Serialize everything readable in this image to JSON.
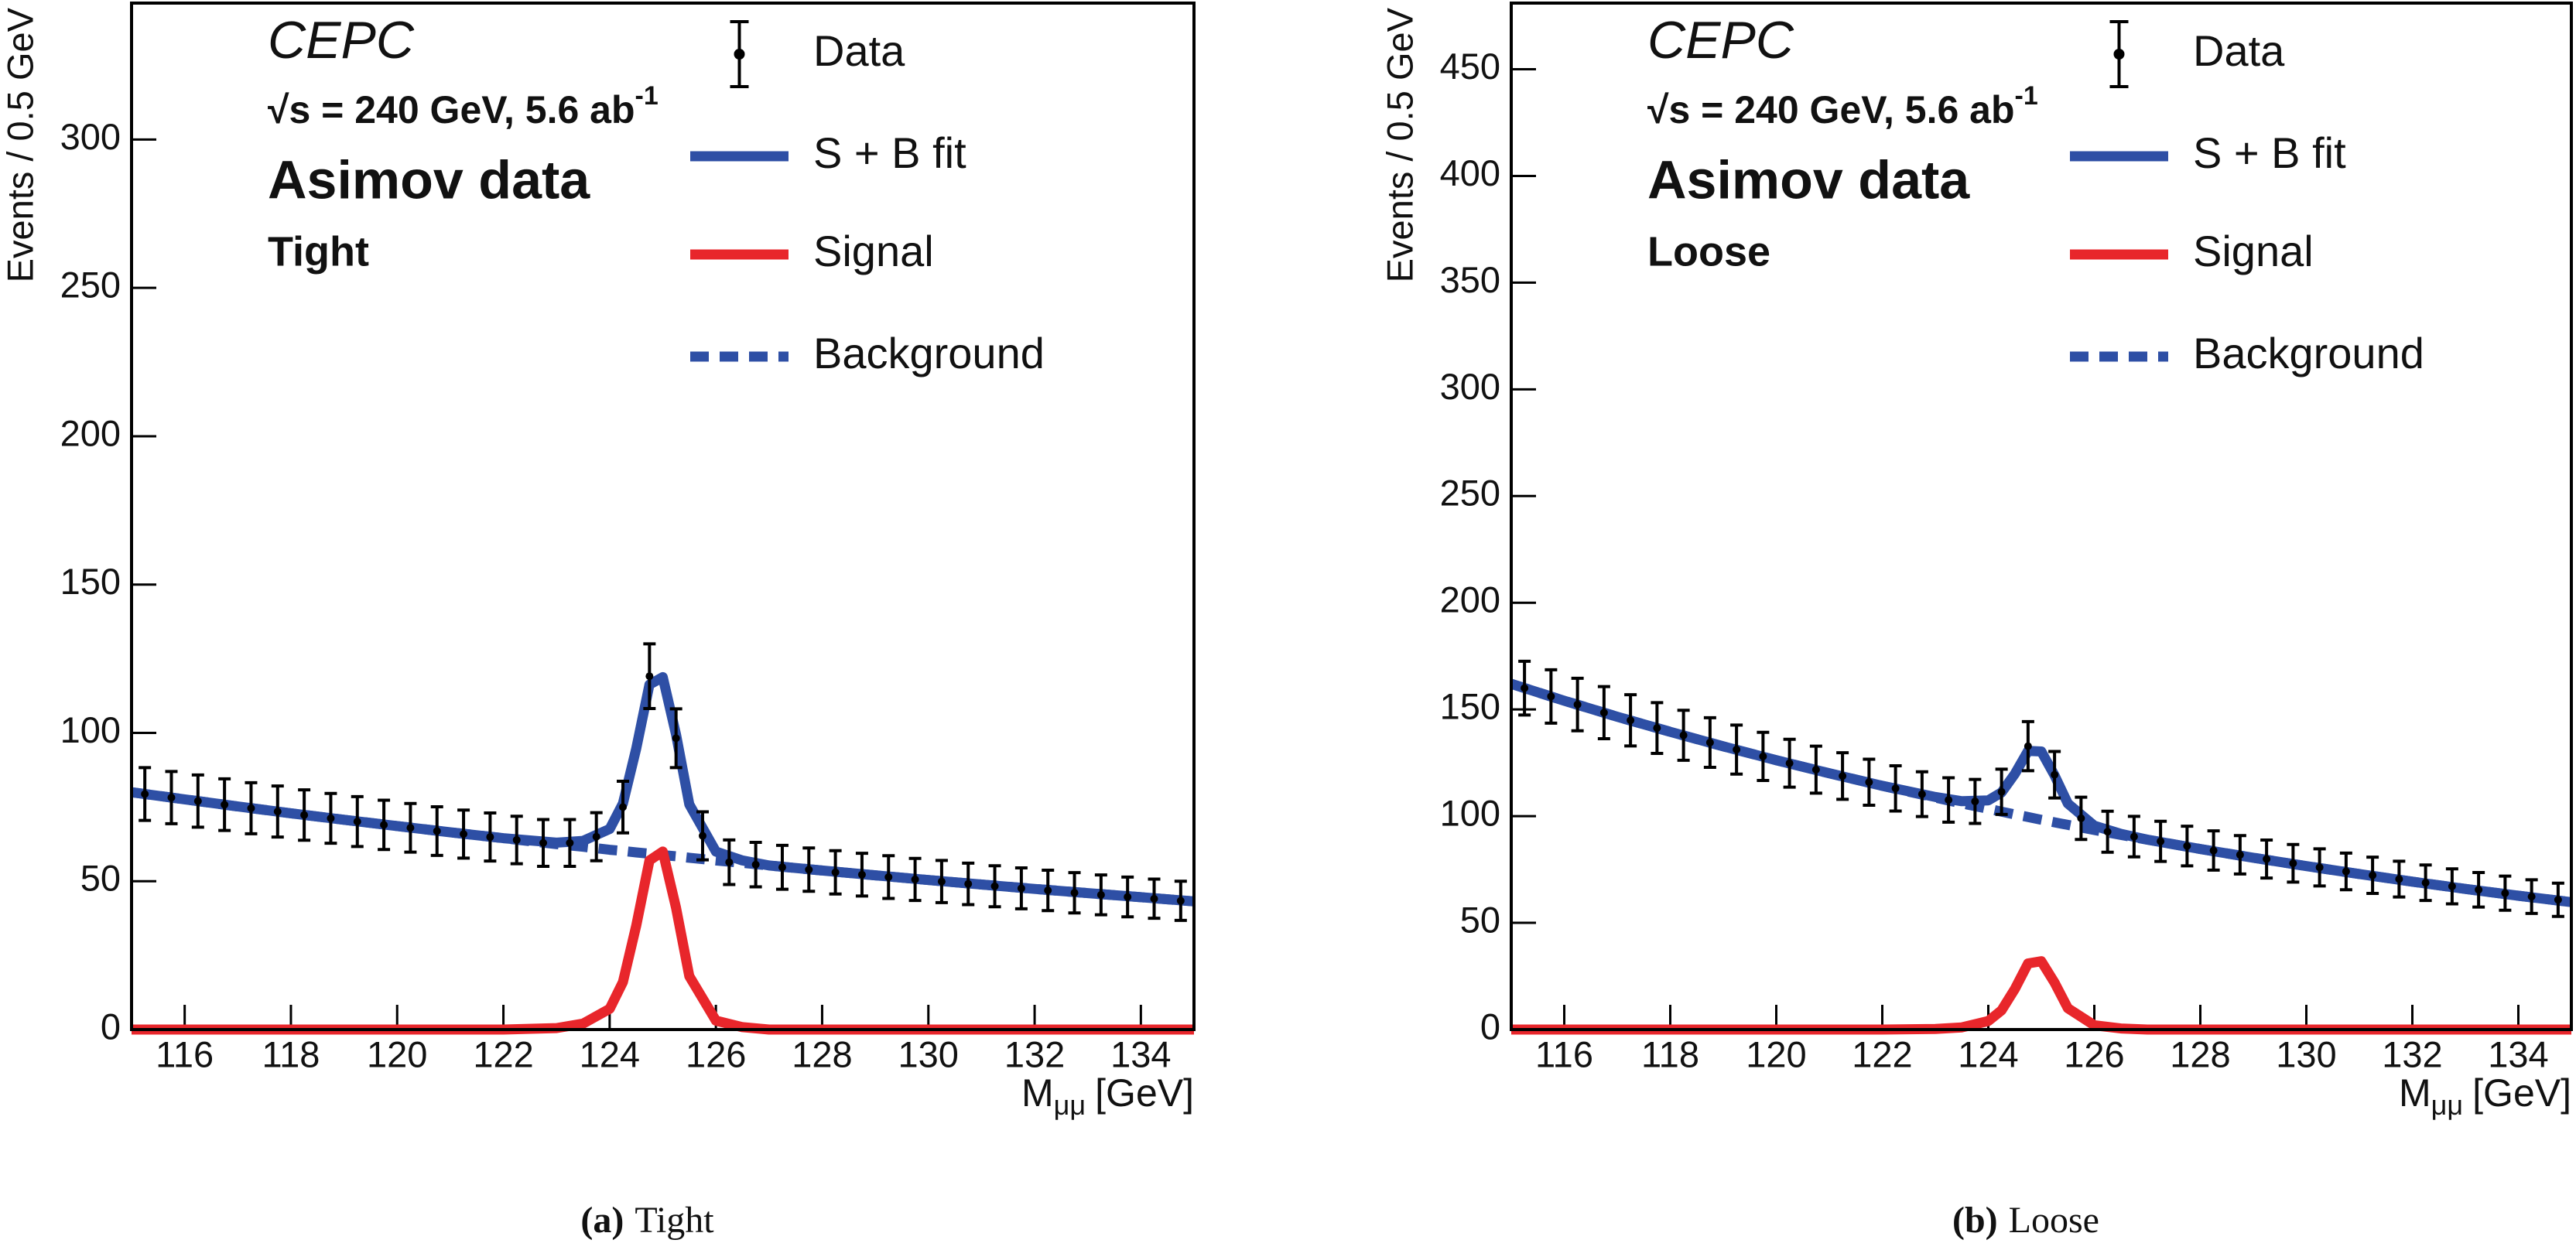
{
  "chart_data": [
    {
      "type": "line",
      "experiment": "CEPC",
      "energy_label": "√s = 240 GeV, 5.6 ab",
      "energy_sup": "-1",
      "dataset": "Asimov data",
      "selection": "Tight",
      "y_label": "Events / 0.5 GeV",
      "x_label": "M",
      "x_label_sub": "μμ",
      "x_label_unit": "[GeV]",
      "caption_label": "(a)",
      "caption": "Tight",
      "xlim": [
        115,
        135
      ],
      "xticks": [
        116,
        118,
        120,
        122,
        124,
        126,
        128,
        130,
        132,
        134
      ],
      "ylim": [
        0,
        346
      ],
      "yticks": [
        0,
        50,
        100,
        150,
        200,
        250,
        300
      ],
      "data": {
        "name": "Data",
        "color": "#000000",
        "x": [
          115.25,
          115.75,
          116.25,
          116.75,
          117.25,
          117.75,
          118.25,
          118.75,
          119.25,
          119.75,
          120.25,
          120.75,
          121.25,
          121.75,
          122.25,
          122.75,
          123.25,
          123.75,
          124.25,
          124.75,
          125.25,
          125.75,
          126.25,
          126.75,
          127.25,
          127.75,
          128.25,
          128.75,
          129.25,
          129.75,
          130.25,
          130.75,
          131.25,
          131.75,
          132.25,
          132.75,
          133.25,
          133.75,
          134.25,
          134.75
        ],
        "values": [
          79.4,
          78.2,
          77.0,
          75.8,
          74.6,
          73.5,
          72.3,
          71.2,
          70.1,
          69.0,
          68.0,
          66.9,
          65.9,
          64.9,
          63.9,
          62.9,
          62.9,
          65.0,
          75.0,
          119.1,
          98.2,
          65.3,
          56.4,
          55.6,
          54.7,
          53.9,
          53.0,
          52.2,
          51.4,
          50.6,
          49.9,
          49.1,
          48.3,
          47.6,
          46.9,
          46.1,
          45.4,
          44.7,
          44.1,
          43.4
        ],
        "errors": [
          8.9,
          8.8,
          8.8,
          8.7,
          8.6,
          8.6,
          8.5,
          8.4,
          8.4,
          8.3,
          8.2,
          8.2,
          8.1,
          8.1,
          8.0,
          7.9,
          7.9,
          8.1,
          8.7,
          10.9,
          9.9,
          8.1,
          7.5,
          7.5,
          7.4,
          7.3,
          7.3,
          7.2,
          7.2,
          7.1,
          7.1,
          7.0,
          6.9,
          6.9,
          6.8,
          6.8,
          6.7,
          6.7,
          6.6,
          6.6
        ]
      },
      "x": [
        115,
        116,
        117,
        118,
        119,
        120,
        121,
        122,
        123,
        123.5,
        124,
        124.25,
        124.5,
        124.75,
        125,
        125.25,
        125.5,
        126,
        126.5,
        127,
        128,
        129,
        130,
        131,
        132,
        133,
        134,
        135
      ],
      "series": [
        {
          "name": "S + B fit",
          "color": "#2e4fa5",
          "values": [
            80,
            77.6,
            75.2,
            72.9,
            70.7,
            68.6,
            66.5,
            64.5,
            63.0,
            63.6,
            67.6,
            76.2,
            94.7,
            116.3,
            118.8,
            99.4,
            75.9,
            60.0,
            57.0,
            55.3,
            53.6,
            52.0,
            50.4,
            48.9,
            47.4,
            46.0,
            44.6,
            43.2
          ]
        },
        {
          "name": "Signal",
          "color": "#e8262b",
          "values": [
            0,
            0,
            0,
            0,
            0,
            0,
            0,
            0,
            0.5,
            2,
            7,
            16,
            35,
            57,
            60,
            41,
            18,
            3,
            0.8,
            0,
            0,
            0,
            0,
            0,
            0,
            0,
            0,
            0
          ]
        },
        {
          "name": "Background",
          "color": "#2e4fa5",
          "dashed": true,
          "values": [
            80,
            77.6,
            75.2,
            72.9,
            70.7,
            68.6,
            66.5,
            64.5,
            62.5,
            61.6,
            60.6,
            60.2,
            59.7,
            59.3,
            58.8,
            58.4,
            57.9,
            57.0,
            56.2,
            55.3,
            53.6,
            52.0,
            50.4,
            48.9,
            47.4,
            46.0,
            44.6,
            43.2
          ]
        }
      ]
    },
    {
      "type": "line",
      "experiment": "CEPC",
      "energy_label": "√s = 240 GeV, 5.6 ab",
      "energy_sup": "-1",
      "dataset": "Asimov data",
      "selection": "Loose",
      "y_label": "Events / 0.5 GeV",
      "x_label": "M",
      "x_label_sub": "μμ",
      "x_label_unit": "[GeV]",
      "caption_label": "(b)",
      "caption": "Loose",
      "xlim": [
        115,
        135
      ],
      "xticks": [
        116,
        118,
        120,
        122,
        124,
        126,
        128,
        130,
        132,
        134
      ],
      "ylim": [
        0,
        481
      ],
      "yticks": [
        0,
        50,
        100,
        150,
        200,
        250,
        300,
        350,
        400,
        450
      ],
      "data": {
        "name": "Data",
        "color": "#000000",
        "x": [
          115.25,
          115.75,
          116.25,
          116.75,
          117.25,
          117.75,
          118.25,
          118.75,
          119.25,
          119.75,
          120.25,
          120.75,
          121.25,
          121.75,
          122.25,
          122.75,
          123.25,
          123.75,
          124.25,
          124.75,
          125.25,
          125.75,
          126.25,
          126.75,
          127.25,
          127.75,
          128.25,
          128.75,
          129.25,
          129.75,
          130.25,
          130.75,
          131.25,
          131.75,
          132.25,
          132.75,
          133.25,
          133.75,
          134.25,
          134.75
        ],
        "values": [
          160.0,
          156.1,
          152.3,
          148.5,
          144.9,
          141.3,
          137.9,
          134.5,
          131.2,
          128.0,
          124.8,
          121.8,
          118.8,
          115.9,
          113.0,
          110.3,
          107.6,
          106.9,
          111.4,
          132.8,
          119.4,
          99.0,
          92.7,
          90.4,
          88.2,
          86.0,
          83.9,
          81.9,
          79.9,
          77.9,
          76.0,
          74.1,
          72.3,
          70.5,
          68.8,
          67.1,
          65.5,
          63.9,
          62.3,
          60.8
        ],
        "errors": [
          12.6,
          12.5,
          12.3,
          12.2,
          12.0,
          11.9,
          11.7,
          11.6,
          11.5,
          11.3,
          11.2,
          11.0,
          10.9,
          10.8,
          10.6,
          10.5,
          10.4,
          10.3,
          10.6,
          11.5,
          10.9,
          9.9,
          9.6,
          9.5,
          9.4,
          9.3,
          9.2,
          9.0,
          8.9,
          8.8,
          8.7,
          8.6,
          8.5,
          8.4,
          8.3,
          8.2,
          8.1,
          8.0,
          7.9,
          7.8
        ]
      },
      "x": [
        115,
        116,
        117,
        118,
        119,
        120,
        121,
        122,
        123,
        123.5,
        124,
        124.25,
        124.5,
        124.75,
        125,
        125.25,
        125.5,
        126,
        126.5,
        127,
        128,
        129,
        130,
        131,
        132,
        133,
        134,
        135
      ],
      "series": [
        {
          "name": "S + B fit",
          "color": "#2e4fa5",
          "values": [
            162,
            154.1,
            146.6,
            139.5,
            132.7,
            126.2,
            120.1,
            114.2,
            109.0,
            107.0,
            107.4,
            111.1,
            119.8,
            130.6,
            130.3,
            119.1,
            105.9,
            95.5,
            91.7,
            89.0,
            84.6,
            80.5,
            76.6,
            72.9,
            69.3,
            65.9,
            62.7,
            59.7
          ]
        },
        {
          "name": "Signal",
          "color": "#e8262b",
          "values": [
            0,
            0,
            0,
            0,
            0,
            0,
            0,
            0,
            0.3,
            1,
            4,
            9,
            19,
            31,
            32,
            22,
            10,
            2,
            0.5,
            0,
            0,
            0,
            0,
            0,
            0,
            0,
            0,
            0
          ]
        },
        {
          "name": "Background",
          "color": "#2e4fa5",
          "dashed": true,
          "values": [
            162,
            154.1,
            146.6,
            139.5,
            132.7,
            126.2,
            120.1,
            114.2,
            108.7,
            106.0,
            103.4,
            102.1,
            100.8,
            99.6,
            98.3,
            97.1,
            95.9,
            93.5,
            91.2,
            89.0,
            84.6,
            80.5,
            76.6,
            72.9,
            69.3,
            65.9,
            62.7,
            59.7
          ]
        }
      ]
    }
  ]
}
